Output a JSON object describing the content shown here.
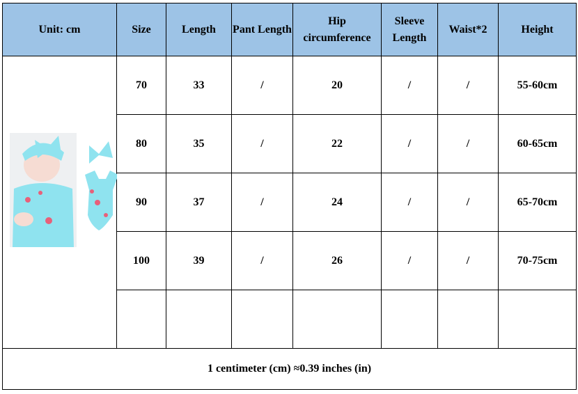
{
  "header": [
    "Unit: cm",
    "Size",
    "Length",
    "Pant Length",
    "Hip circumference",
    "Sleeve Length",
    "Waist*2",
    "Height"
  ],
  "rows": [
    [
      "70",
      "33",
      "/",
      "20",
      "/",
      "/",
      "55-60cm"
    ],
    [
      "80",
      "35",
      "/",
      "22",
      "/",
      "/",
      "60-65cm"
    ],
    [
      "90",
      "37",
      "/",
      "24",
      "/",
      "/",
      "65-70cm"
    ],
    [
      "100",
      "39",
      "/",
      "26",
      "/",
      "/",
      "70-75cm"
    ],
    [
      "",
      "",
      "",
      "",
      "",
      "",
      ""
    ]
  ],
  "footer": "1 centimeter (cm) ≈0.39 inches (in)",
  "colors": {
    "header_bg": "#9dc3e6",
    "romper": "#8fe3ef"
  }
}
